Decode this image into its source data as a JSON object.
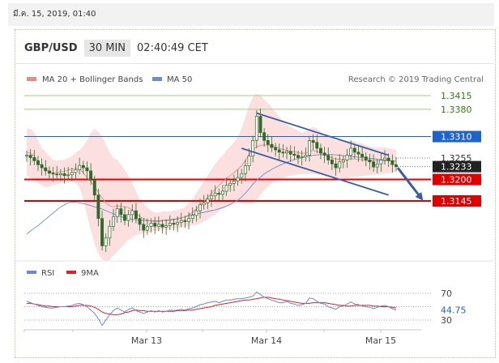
{
  "timestamp": "มี.ค. 15, 2019, 01:40",
  "header": {
    "pair": "GBP/USD",
    "interval": "30 MIN",
    "time": "02:40:49 CET"
  },
  "legend": {
    "ma20": "MA 20 + Bollinger Bands",
    "ma50": "MA 50",
    "credit": "Research © 2019 Trading Central"
  },
  "colors": {
    "bands": "#fbd6d6",
    "ma20": "#e88a8a",
    "ma50": "#6b8ec9",
    "support": "#e00000",
    "resistance_green": "#9ccf7a",
    "pivot_blue": "#1d64c8",
    "channel": "#3a5fa0",
    "candle": "#2f6b2a",
    "rsi": "#6f86d6",
    "rsi9ma": "#d92424"
  },
  "chart_data": {
    "type": "candlestick",
    "price_axis_ticks": [
      "1.3415",
      "1.3380",
      "1.3310",
      "1.3255",
      "1.3233",
      "1.3200",
      "1.3145"
    ],
    "levels": [
      {
        "price": 1.3415,
        "label": "1.3415",
        "kind": "target-green"
      },
      {
        "price": 1.338,
        "label": "1.3380",
        "kind": "target-green"
      },
      {
        "price": 1.331,
        "label": "1.3310",
        "kind": "resistance-blue"
      },
      {
        "price": 1.3255,
        "label": "1.3255",
        "kind": "plain"
      },
      {
        "price": 1.3233,
        "label": "1.3233",
        "kind": "last-price"
      },
      {
        "price": 1.32,
        "label": "1.3200",
        "kind": "support-red"
      },
      {
        "price": 1.3145,
        "label": "1.3145",
        "kind": "support-red"
      }
    ],
    "x_labels": [
      "Mar 13",
      "Mar 14",
      "Mar 15"
    ],
    "closes": [
      1.3262,
      1.3256,
      1.3248,
      1.3238,
      1.323,
      1.3222,
      1.3216,
      1.3214,
      1.3212,
      1.3215,
      1.321,
      1.3212,
      1.3218,
      1.3225,
      1.3236,
      1.323,
      1.3222,
      1.3198,
      1.316,
      1.31,
      1.303,
      1.305,
      1.308,
      1.3105,
      1.3125,
      1.311,
      1.3095,
      1.311,
      1.312,
      1.31,
      1.3085,
      1.307,
      1.308,
      1.3088,
      1.308,
      1.3085,
      1.3078,
      1.3082,
      1.3088,
      1.3085,
      1.309,
      1.3095,
      1.3092,
      1.31,
      1.3108,
      1.312,
      1.3135,
      1.314,
      1.315,
      1.3158,
      1.3165,
      1.3162,
      1.317,
      1.3185,
      1.319,
      1.3196,
      1.3205,
      1.3215,
      1.3235,
      1.326,
      1.33,
      1.3362,
      1.332,
      1.33,
      1.329,
      1.3282,
      1.3276,
      1.327,
      1.3268,
      1.3272,
      1.3265,
      1.3262,
      1.3256,
      1.3258,
      1.3262,
      1.33,
      1.3295,
      1.328,
      1.3268,
      1.3262,
      1.325,
      1.324,
      1.323,
      1.3245,
      1.325,
      1.3262,
      1.328,
      1.327,
      1.3265,
      1.3258,
      1.325,
      1.3245,
      1.3232,
      1.324,
      1.325,
      1.3255,
      1.3248,
      1.3238,
      1.3233
    ],
    "bb_upper": [
      1.333,
      1.333,
      1.332,
      1.33,
      1.328,
      1.327,
      1.326,
      1.325,
      1.3248,
      1.325,
      1.325,
      1.3255,
      1.326,
      1.3268,
      1.3275,
      1.3285,
      1.33,
      1.332,
      1.333,
      1.3322,
      1.331,
      1.329,
      1.327,
      1.3255,
      1.325,
      1.3238,
      1.3225,
      1.321,
      1.319,
      1.317,
      1.315,
      1.3138,
      1.3128,
      1.312,
      1.3115,
      1.3115,
      1.3118,
      1.3118,
      1.3118,
      1.312,
      1.3122,
      1.3125,
      1.313,
      1.3138,
      1.315,
      1.3165,
      1.318,
      1.3195,
      1.321,
      1.3225,
      1.324,
      1.3252,
      1.3262,
      1.3275,
      1.3285,
      1.3295,
      1.331,
      1.333,
      1.336,
      1.339,
      1.341,
      1.342,
      1.3415,
      1.3405,
      1.3395,
      1.3385,
      1.3372,
      1.336,
      1.335,
      1.3342,
      1.3335,
      1.333,
      1.3325,
      1.332,
      1.3322,
      1.333,
      1.3335,
      1.333,
      1.3322,
      1.3315,
      1.331,
      1.3305,
      1.33,
      1.33,
      1.3298,
      1.3298,
      1.33,
      1.3298,
      1.3295,
      1.3292,
      1.3288,
      1.3285,
      1.3283,
      1.3282,
      1.3282,
      1.3282,
      1.328,
      1.3278,
      1.3276
    ],
    "bb_lower": [
      1.321,
      1.3205,
      1.32,
      1.319,
      1.3185,
      1.318,
      1.3182,
      1.3185,
      1.3188,
      1.319,
      1.3192,
      1.3194,
      1.3194,
      1.319,
      1.318,
      1.315,
      1.311,
      1.307,
      1.3035,
      1.301,
      1.2995,
      1.299,
      1.2995,
      1.3005,
      1.3015,
      1.3025,
      1.3035,
      1.3045,
      1.3052,
      1.3058,
      1.306,
      1.3062,
      1.3064,
      1.3066,
      1.3068,
      1.3069,
      1.307,
      1.3071,
      1.3072,
      1.3073,
      1.3075,
      1.3077,
      1.3079,
      1.308,
      1.3082,
      1.3084,
      1.3088,
      1.3092,
      1.3098,
      1.3105,
      1.311,
      1.3118,
      1.3125,
      1.313,
      1.3135,
      1.314,
      1.3142,
      1.314,
      1.3138,
      1.3138,
      1.314,
      1.3148,
      1.316,
      1.3172,
      1.3182,
      1.319,
      1.3196,
      1.32,
      1.3204,
      1.3208,
      1.321,
      1.3212,
      1.3213,
      1.3214,
      1.3214,
      1.3214,
      1.3214,
      1.3213,
      1.3212,
      1.321,
      1.3208,
      1.3206,
      1.3205,
      1.3204,
      1.3204,
      1.3205,
      1.3206,
      1.3207,
      1.3208,
      1.3209,
      1.321,
      1.3211,
      1.3212,
      1.3213,
      1.3214,
      1.3215,
      1.3216,
      1.3217,
      1.3218
    ],
    "ma50": [
      1.306,
      1.3068,
      1.3075,
      1.3082,
      1.309,
      1.3098,
      1.3106,
      1.3114,
      1.3122,
      1.313,
      1.3135,
      1.314,
      1.3142,
      1.3142,
      1.314,
      1.3138,
      1.3136,
      1.3133,
      1.313,
      1.3127,
      1.3124,
      1.312,
      1.3116,
      1.3112,
      1.3108,
      1.3105,
      1.3102,
      1.31,
      1.3098,
      1.3097,
      1.3096,
      1.3095,
      1.3094,
      1.3094,
      1.3094,
      1.3094,
      1.3095,
      1.3096,
      1.3097,
      1.3098,
      1.31,
      1.3102,
      1.3104,
      1.3107,
      1.311,
      1.3112,
      1.3114,
      1.3116,
      1.3118,
      1.312,
      1.3122,
      1.3125,
      1.3128,
      1.3132,
      1.3136,
      1.3141,
      1.3147,
      1.3155,
      1.3165,
      1.3176,
      1.3188,
      1.3198,
      1.3206,
      1.3214,
      1.322,
      1.3226,
      1.3231,
      1.3236,
      1.324,
      1.3244,
      1.3248,
      1.3251,
      1.3254,
      1.3256,
      1.3258,
      1.326,
      1.3262,
      1.3263,
      1.3264,
      1.3264,
      1.3264,
      1.3264,
      1.3263,
      1.3262,
      1.3261,
      1.326,
      1.3259,
      1.3258,
      1.3257,
      1.3256,
      1.3255,
      1.3254,
      1.3253,
      1.3252,
      1.3251,
      1.325,
      1.3249,
      1.3248,
      1.3247
    ],
    "channel_upper": [
      [
        61,
        1.337
      ],
      [
        96,
        1.3262
      ]
    ],
    "channel_lower": [
      [
        57,
        1.328
      ],
      [
        96,
        1.316
      ]
    ],
    "rsi": {
      "levels": [
        70,
        50,
        30
      ],
      "tick_labels": [
        "70",
        "30"
      ],
      "last": "44.75",
      "legend": [
        "RSI",
        "9MA"
      ],
      "values": [
        58,
        56,
        54,
        52,
        50,
        49,
        48,
        48,
        49,
        50,
        50,
        51,
        52,
        54,
        55,
        53,
        50,
        45,
        40,
        32,
        22,
        30,
        38,
        44,
        48,
        45,
        42,
        46,
        48,
        44,
        42,
        40,
        42,
        44,
        42,
        44,
        42,
        43,
        45,
        44,
        45,
        46,
        45,
        47,
        48,
        50,
        53,
        54,
        56,
        57,
        58,
        56,
        58,
        60,
        60,
        61,
        62,
        62,
        63,
        64,
        66,
        72,
        68,
        64,
        62,
        60,
        58,
        56,
        56,
        58,
        55,
        54,
        52,
        53,
        55,
        63,
        62,
        58,
        55,
        54,
        50,
        48,
        46,
        50,
        51,
        54,
        57,
        54,
        53,
        51,
        50,
        49,
        47,
        49,
        51,
        52,
        50,
        47,
        45
      ],
      "ma9": [
        55,
        55,
        54,
        53,
        52,
        51,
        51,
        50,
        50,
        50,
        50,
        50,
        50,
        51,
        52,
        52,
        52,
        51,
        49,
        46,
        42,
        40,
        39,
        38,
        38,
        39,
        41,
        42,
        44,
        45,
        44,
        44,
        43,
        43,
        43,
        43,
        43,
        43,
        43,
        43,
        44,
        44,
        44,
        45,
        45,
        46,
        47,
        48,
        49,
        50,
        52,
        53,
        54,
        55,
        56,
        57,
        58,
        59,
        60,
        60,
        61,
        62,
        63,
        64,
        64,
        63,
        62,
        61,
        60,
        59,
        58,
        57,
        56,
        55,
        55,
        55,
        56,
        56,
        56,
        56,
        55,
        54,
        53,
        52,
        52,
        51,
        51,
        52,
        52,
        52,
        52,
        52,
        51,
        51,
        50,
        50,
        50,
        49,
        48
      ]
    }
  }
}
